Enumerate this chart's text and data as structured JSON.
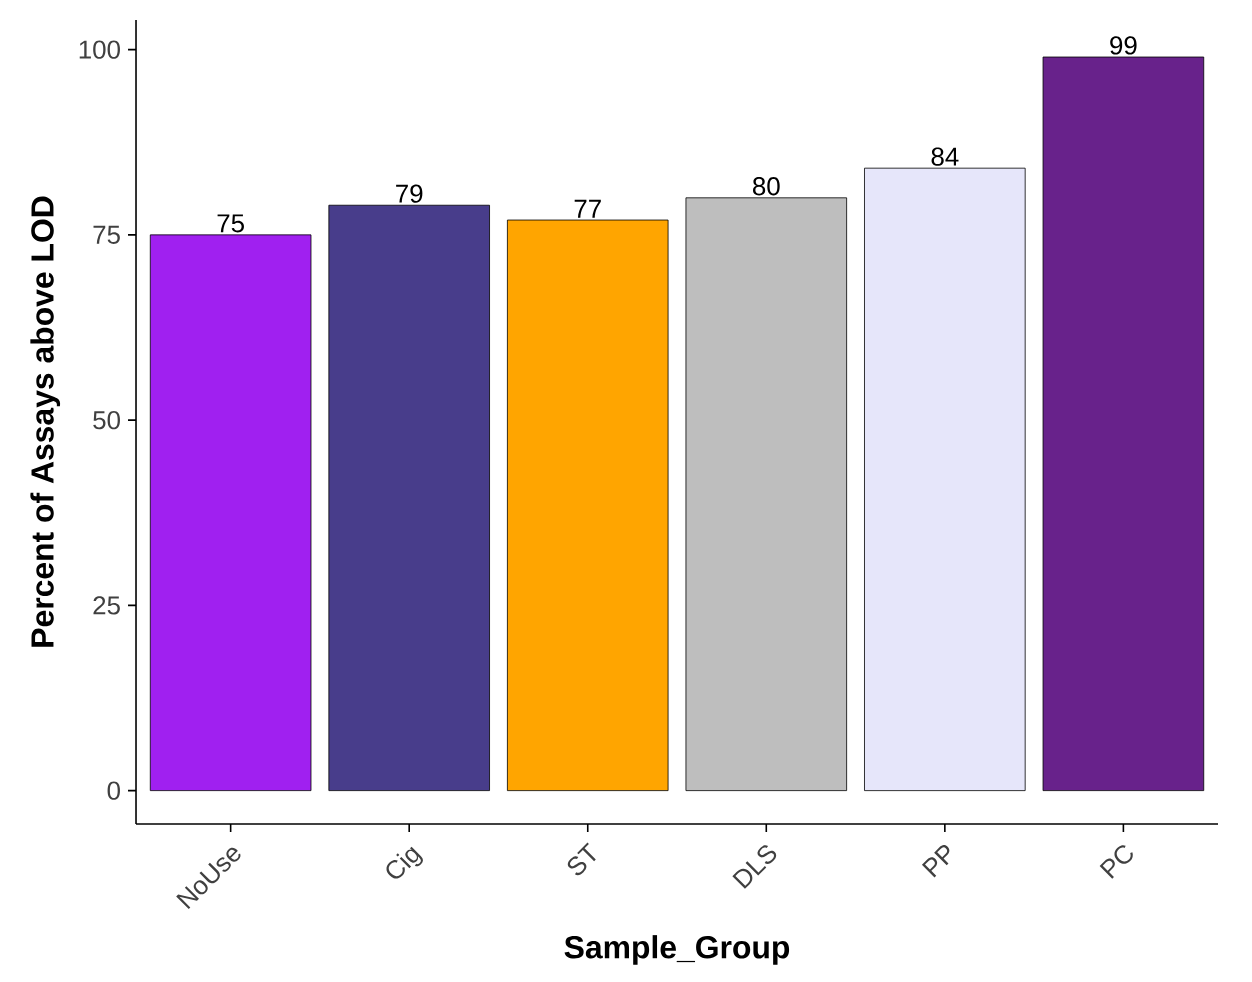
{
  "chart_data": {
    "type": "bar",
    "xlabel": "Sample_Group",
    "ylabel": "Percent of Assays above LOD",
    "categories": [
      "NoUse",
      "Cig",
      "ST",
      "DLS",
      "PP",
      "PC"
    ],
    "values": [
      75,
      79,
      77,
      80,
      84,
      99
    ],
    "colors": [
      "#a020f0",
      "#483d8b",
      "#ffa500",
      "#bebebe",
      "#e6e6fa",
      "#68228b"
    ],
    "ylim": [
      -4.5,
      104
    ],
    "yticks": [
      0,
      25,
      50,
      75,
      100
    ],
    "data_labels": true,
    "grid": false
  }
}
